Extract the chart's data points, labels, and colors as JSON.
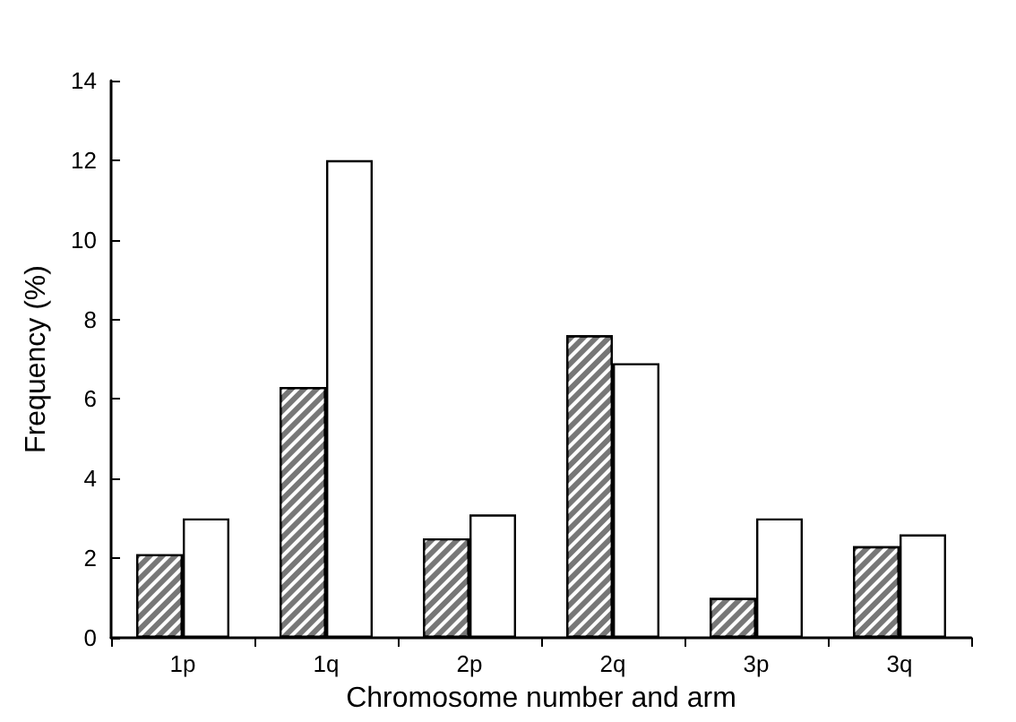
{
  "chart_data": {
    "type": "bar",
    "xlabel": "Chromosome number and arm",
    "ylabel": "Frequency (%)",
    "categories": [
      "1p",
      "1q",
      "2p",
      "2q",
      "3p",
      "3q"
    ],
    "series": [
      {
        "color": "#777777",
        "values": [
          2.1,
          6.3,
          2.5,
          7.6,
          1.0,
          2.3
        ]
      },
      {
        "color": "#ffffff",
        "values": [
          3.0,
          12.0,
          3.1,
          6.9,
          3.0,
          2.6
        ]
      }
    ],
    "ylim": [
      0,
      14
    ],
    "yticks": [
      0,
      2,
      4,
      6,
      8,
      10,
      12,
      14
    ],
    "grid": false
  }
}
